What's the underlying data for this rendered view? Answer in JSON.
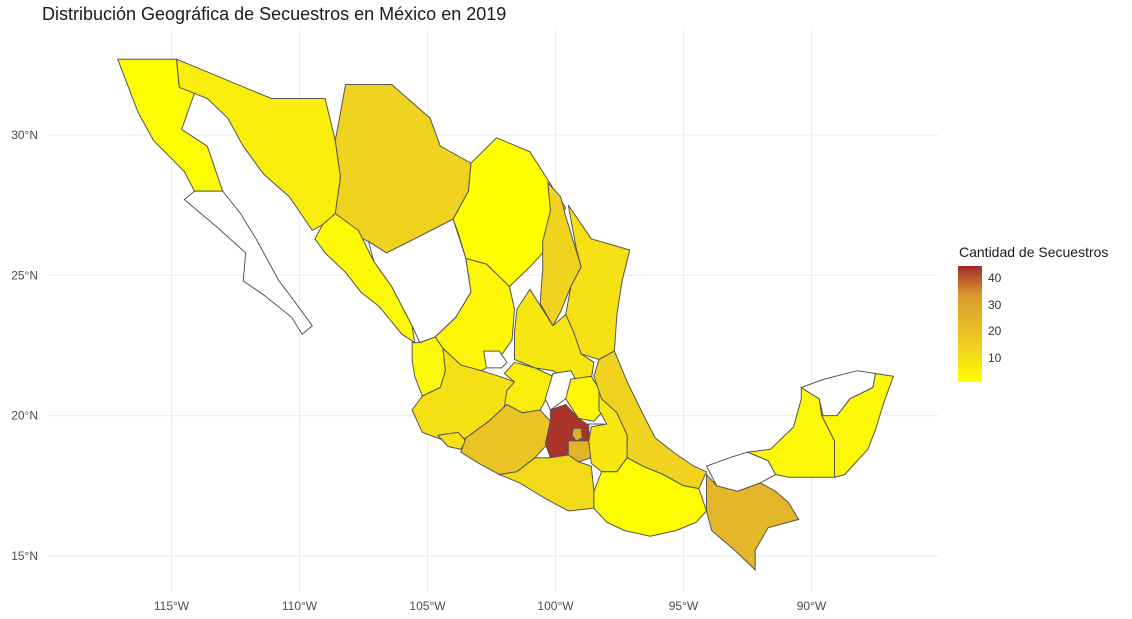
{
  "title": "Distribución Geográfica de Secuestros en México en 2019",
  "axes": {
    "x_ticks": [
      "115°W",
      "110°W",
      "105°W",
      "100°W",
      "95°W",
      "90°W"
    ],
    "y_ticks": [
      "30°N",
      "25°N",
      "20°N",
      "15°N"
    ]
  },
  "legend": {
    "title": "Cantidad de Secuestros",
    "labels": [
      "40",
      "30",
      "20",
      "10"
    ],
    "color_low": "#ffff00",
    "color_high": "#a52a2a",
    "placement": "right"
  },
  "colors": {
    "no_data": "#ffffff",
    "border": "#555555",
    "grid": "#ebebeb"
  },
  "chart_data": {
    "type": "choropleth",
    "fill_variable": "Cantidad de Secuestros",
    "xlim": [
      -119,
      -86
    ],
    "ylim": [
      14.5,
      33
    ],
    "states": [
      {
        "name": "Baja California",
        "value": 2
      },
      {
        "name": "Baja California Sur",
        "value": null
      },
      {
        "name": "Sonora",
        "value": 6
      },
      {
        "name": "Chihuahua",
        "value": 14
      },
      {
        "name": "Coahuila",
        "value": 1
      },
      {
        "name": "Nuevo León",
        "value": 14
      },
      {
        "name": "Tamaulipas",
        "value": 10
      },
      {
        "name": "Sinaloa",
        "value": 3
      },
      {
        "name": "Durango",
        "value": null
      },
      {
        "name": "Zacatecas",
        "value": 4
      },
      {
        "name": "San Luis Potosí",
        "value": 8
      },
      {
        "name": "Nayarit",
        "value": 3
      },
      {
        "name": "Aguascalientes",
        "value": null
      },
      {
        "name": "Jalisco",
        "value": 10
      },
      {
        "name": "Guanajuato",
        "value": 6
      },
      {
        "name": "Querétaro",
        "value": null
      },
      {
        "name": "Hidalgo",
        "value": 4
      },
      {
        "name": "Colima",
        "value": 10
      },
      {
        "name": "Michoacán",
        "value": 19
      },
      {
        "name": "Estado de México",
        "value": 44
      },
      {
        "name": "Ciudad de México",
        "value": 27
      },
      {
        "name": "Tlaxcala",
        "value": null
      },
      {
        "name": "Morelos",
        "value": 25
      },
      {
        "name": "Puebla",
        "value": 8
      },
      {
        "name": "Veracruz",
        "value": 14
      },
      {
        "name": "Guerrero",
        "value": 12
      },
      {
        "name": "Oaxaca",
        "value": 2
      },
      {
        "name": "Tabasco",
        "value": null
      },
      {
        "name": "Chiapas",
        "value": 24
      },
      {
        "name": "Campeche",
        "value": 3
      },
      {
        "name": "Yucatán",
        "value": null
      },
      {
        "name": "Quintana Roo",
        "value": 3
      }
    ]
  }
}
